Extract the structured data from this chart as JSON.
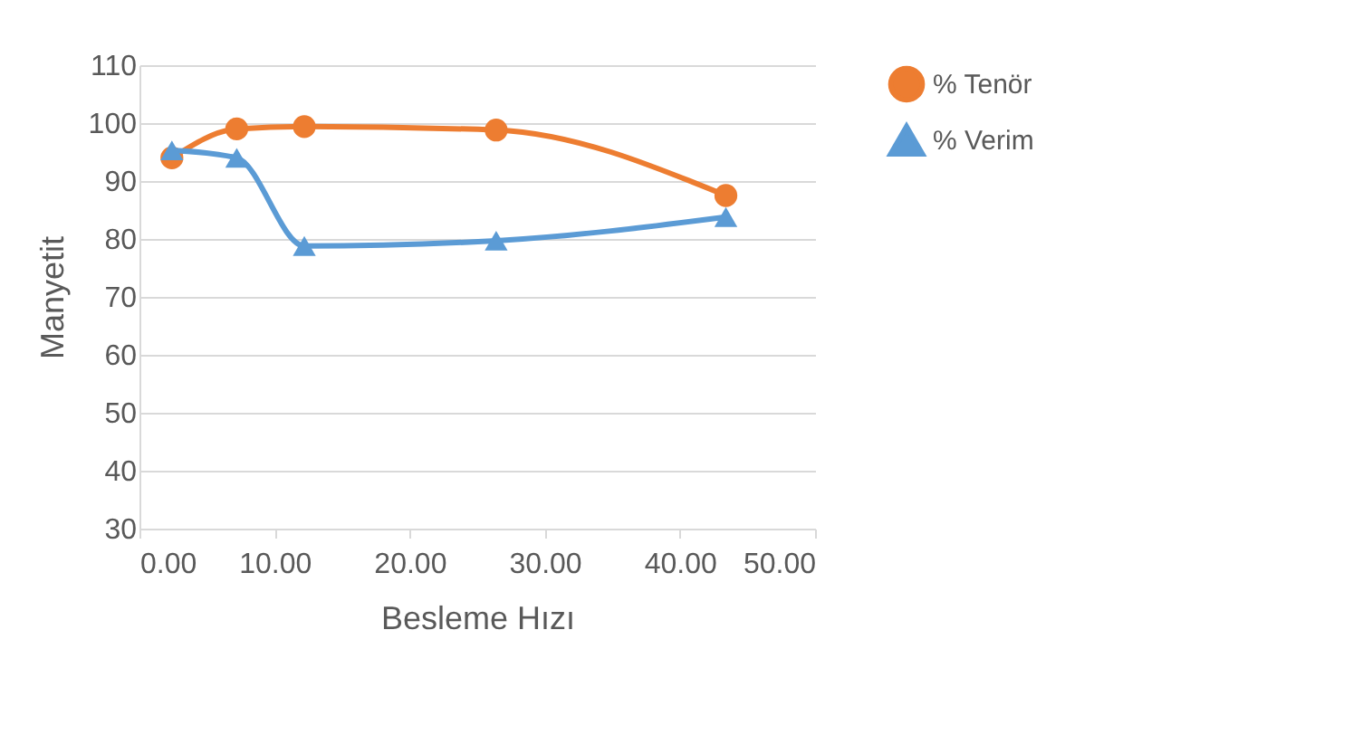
{
  "chart_data": {
    "type": "line",
    "xlabel": "Besleme Hızı",
    "ylabel": "Manyetit",
    "xlim": [
      0,
      50
    ],
    "xticks": [
      {
        "value": 0,
        "label": "0.00"
      },
      {
        "value": 10,
        "label": "10.00"
      },
      {
        "value": 20,
        "label": "20.00"
      },
      {
        "value": 30,
        "label": "30.00"
      },
      {
        "value": 40,
        "label": "40.00"
      },
      {
        "value": 50,
        "label": "50.00"
      }
    ],
    "ylim": [
      30,
      110
    ],
    "yticks": [
      30,
      40,
      50,
      60,
      70,
      80,
      90,
      100,
      110
    ],
    "grid": "y",
    "legend": "right",
    "x": [
      2.4,
      7.2,
      12.2,
      26.4,
      43.4
    ],
    "series": [
      {
        "name": "% Tenör",
        "color": "#ed7d31",
        "marker": "circle",
        "values": [
          94,
          99,
          99.4,
          98.8,
          87.5
        ]
      },
      {
        "name": "% Verim",
        "color": "#5b9bd5",
        "marker": "triangle",
        "values": [
          95.3,
          94,
          78.8,
          79.7,
          83.8
        ]
      }
    ]
  }
}
